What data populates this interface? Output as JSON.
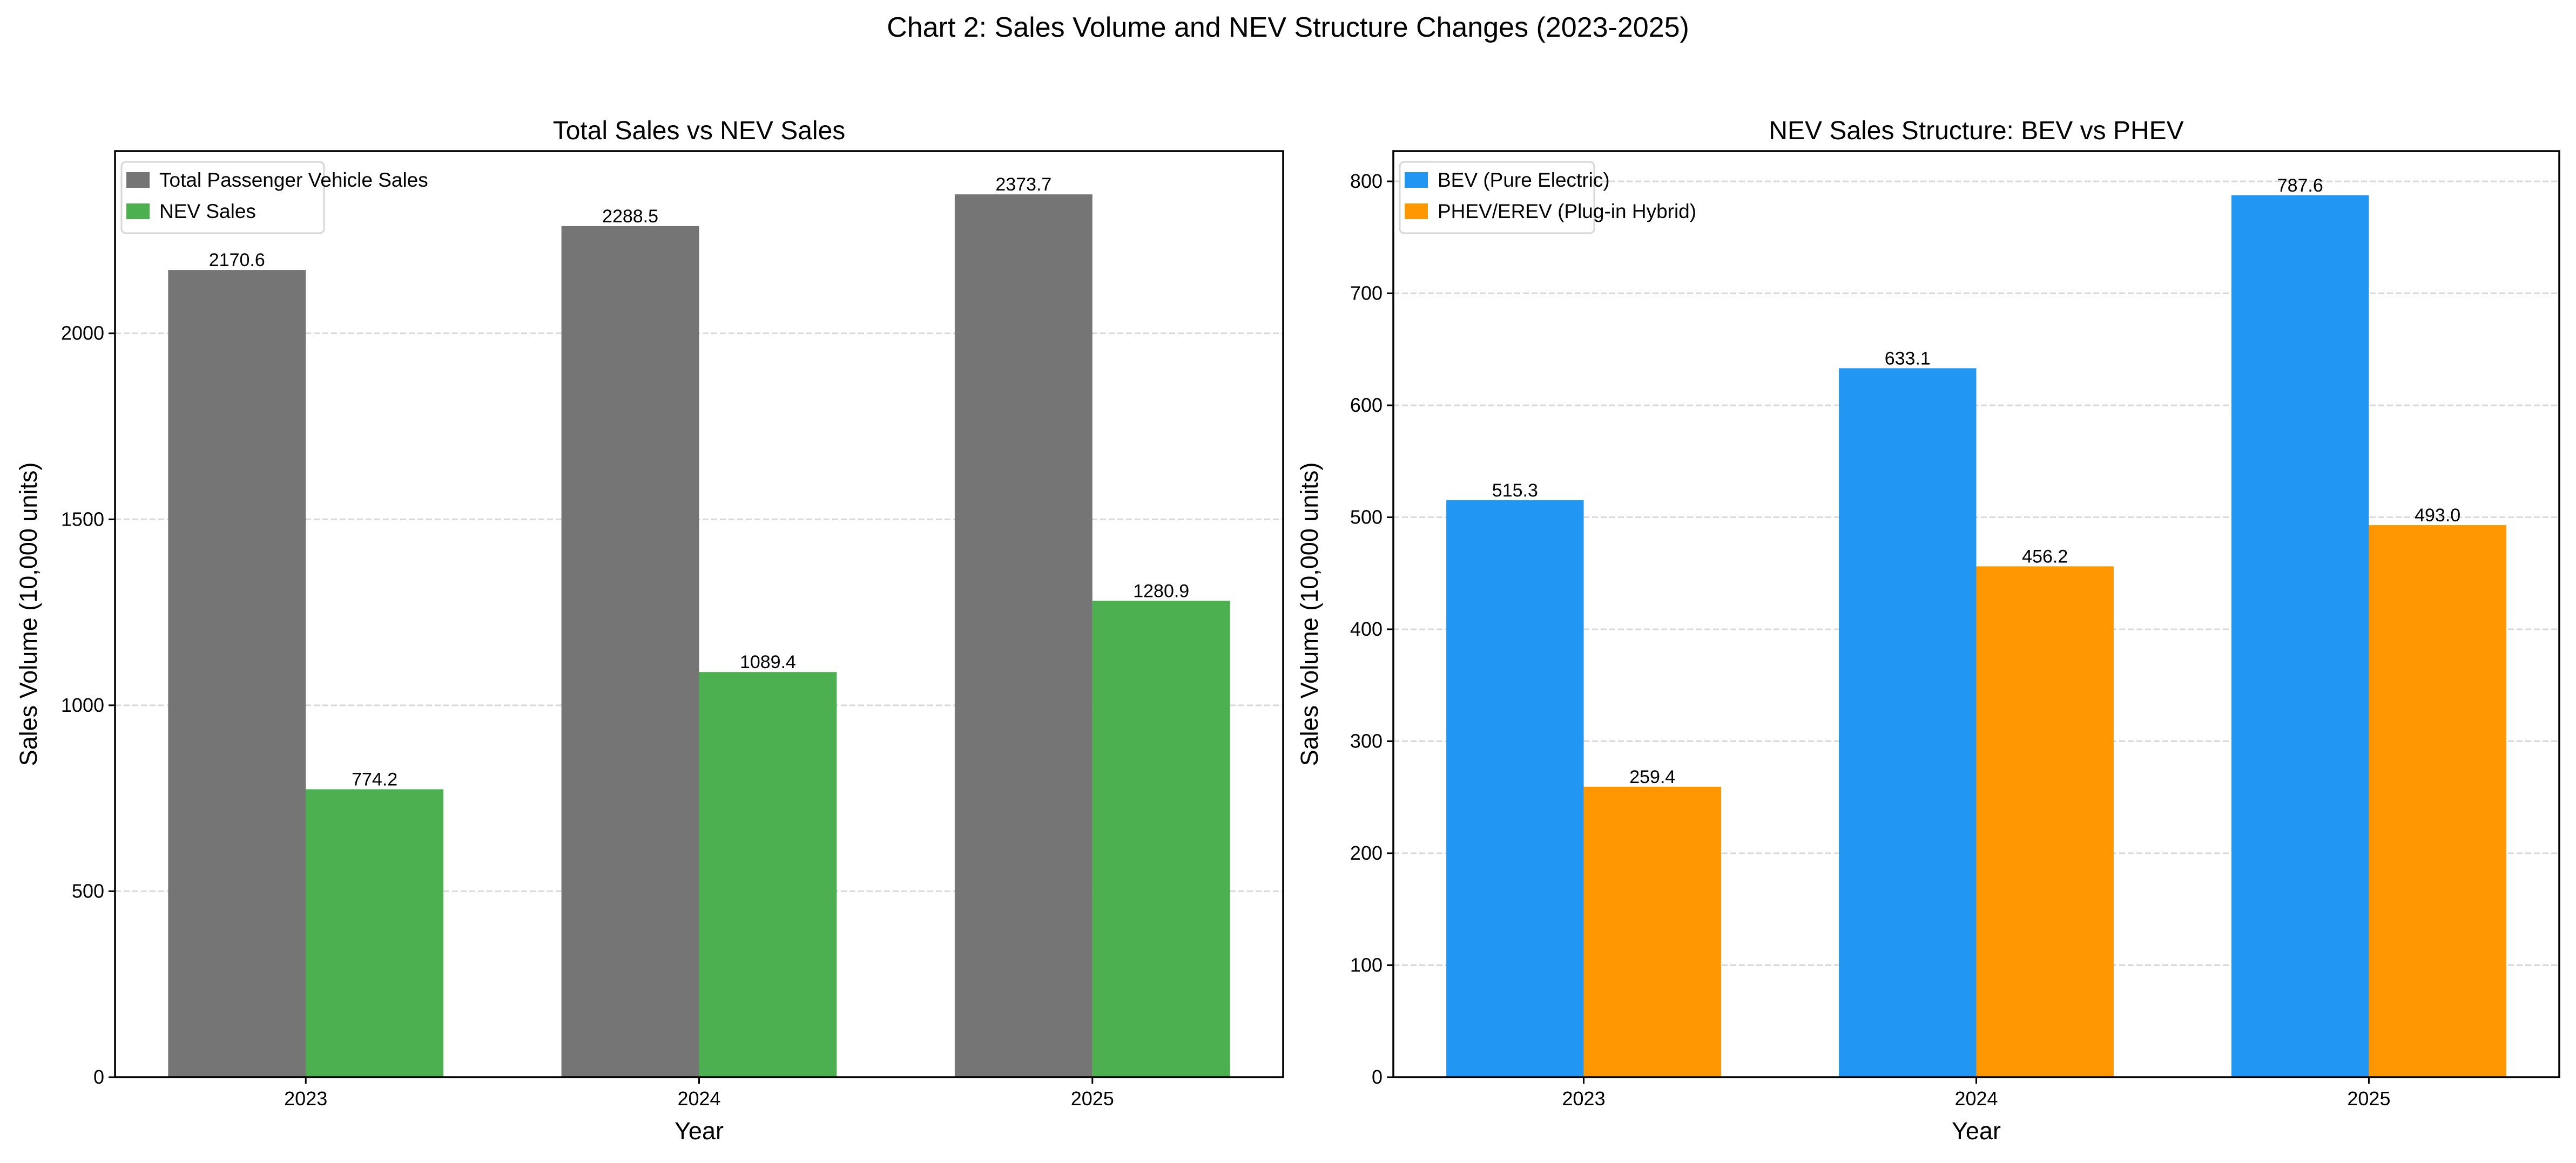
{
  "suptitle": "Chart 2: Sales Volume and NEV Structure Changes (2023-2025)",
  "chart_data": [
    {
      "type": "bar",
      "title": "Total Sales vs NEV Sales",
      "xlabel": "Year",
      "ylabel": "Sales Volume (10,000 units)",
      "categories": [
        "2023",
        "2024",
        "2025"
      ],
      "ylim": [
        0,
        2490
      ],
      "yticks": [
        0,
        500,
        1000,
        1500,
        2000
      ],
      "grid": "y, dashed",
      "legend": "top-left",
      "series": [
        {
          "name": "Total Passenger Vehicle Sales",
          "color": "#757575",
          "values": [
            2170.6,
            2288.5,
            2373.7
          ],
          "labels": [
            "2170.6",
            "2288.5",
            "2373.7"
          ]
        },
        {
          "name": "NEV Sales",
          "color": "#4caf50",
          "values": [
            774.2,
            1089.4,
            1280.9
          ],
          "labels": [
            "774.2",
            "1089.4",
            "1280.9"
          ]
        }
      ]
    },
    {
      "type": "bar",
      "title": "NEV Sales Structure: BEV vs PHEV",
      "xlabel": "Year",
      "ylabel": "Sales Volume (10,000 units)",
      "categories": [
        "2023",
        "2024",
        "2025"
      ],
      "ylim": [
        0,
        827
      ],
      "yticks": [
        0,
        100,
        200,
        300,
        400,
        500,
        600,
        700,
        800
      ],
      "grid": "y, dashed",
      "legend": "top-left",
      "series": [
        {
          "name": "BEV (Pure Electric)",
          "color": "#2196f3",
          "values": [
            515.3,
            633.1,
            787.6
          ],
          "labels": [
            "515.3",
            "633.1",
            "787.6"
          ]
        },
        {
          "name": "PHEV/EREV (Plug-in Hybrid)",
          "color": "#ff9800",
          "values": [
            259.4,
            456.2,
            493.0
          ],
          "labels": [
            "259.4",
            "456.2",
            "493.0"
          ]
        }
      ]
    }
  ]
}
